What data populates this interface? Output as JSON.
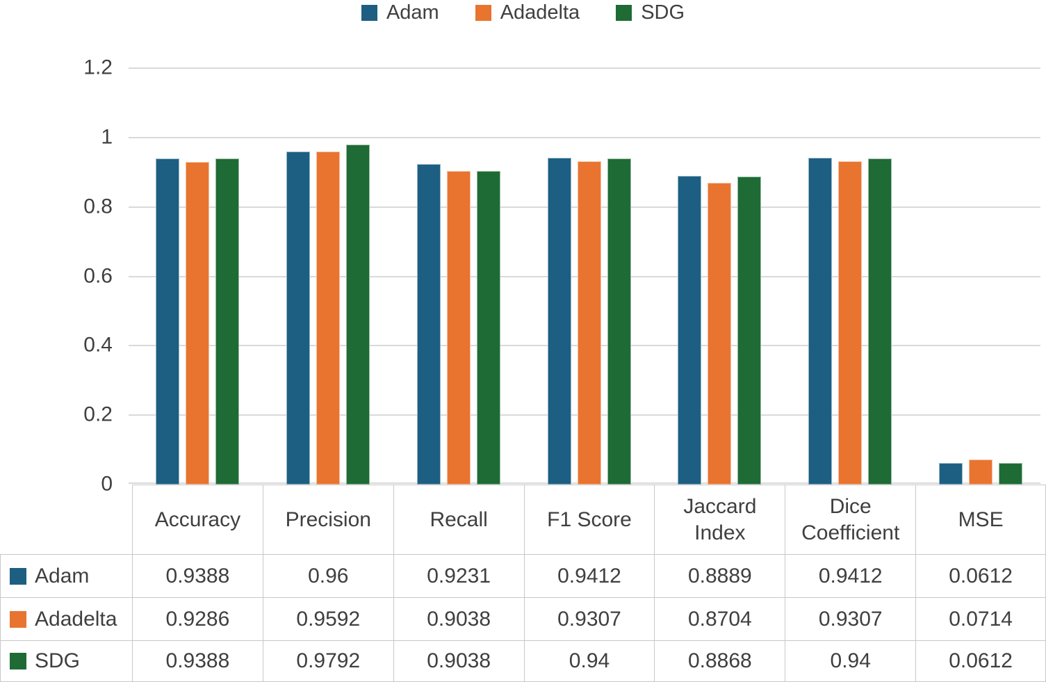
{
  "colors": {
    "series": [
      "#1c5f82",
      "#e87430",
      "#1e6b35"
    ],
    "gridline": "#d9d9d9",
    "table_border": "#c8c8c8",
    "text": "#3f3f3f"
  },
  "chart_data": {
    "type": "bar",
    "title": "",
    "xlabel": "",
    "ylabel": "",
    "categories": [
      "Accuracy",
      "Precision",
      "Recall",
      "F1 Score",
      "Jaccard Index",
      "Dice Coefficient",
      "MSE"
    ],
    "series": [
      {
        "name": "Adam",
        "values": [
          0.9388,
          0.96,
          0.9231,
          0.9412,
          0.8889,
          0.9412,
          0.0612
        ]
      },
      {
        "name": "Adadelta",
        "values": [
          0.9286,
          0.9592,
          0.9038,
          0.9307,
          0.8704,
          0.9307,
          0.0714
        ]
      },
      {
        "name": "SDG",
        "values": [
          0.9388,
          0.9792,
          0.9038,
          0.94,
          0.8868,
          0.94,
          0.0612
        ]
      }
    ],
    "ylim": [
      0,
      1.2
    ],
    "yticks": [
      0,
      0.2,
      0.4,
      0.6,
      0.8,
      1,
      1.2
    ],
    "ytick_labels": [
      "0",
      "0.2",
      "0.4",
      "0.6",
      "0.8",
      "1",
      "1.2"
    ],
    "grid": true,
    "legend_position": "top"
  },
  "table": {
    "headers": [
      "Accuracy",
      "Precision",
      "Recall",
      "F1 Score",
      "Jaccard Index",
      "Dice Coefficient",
      "MSE"
    ],
    "rows": [
      {
        "label": "Adam",
        "cells": [
          "0.9388",
          "0.96",
          "0.9231",
          "0.9412",
          "0.8889",
          "0.9412",
          "0.0612"
        ]
      },
      {
        "label": "Adadelta",
        "cells": [
          "0.9286",
          "0.9592",
          "0.9038",
          "0.9307",
          "0.8704",
          "0.9307",
          "0.0714"
        ]
      },
      {
        "label": "SDG",
        "cells": [
          "0.9388",
          "0.9792",
          "0.9038",
          "0.94",
          "0.8868",
          "0.94",
          "0.0612"
        ]
      }
    ]
  }
}
